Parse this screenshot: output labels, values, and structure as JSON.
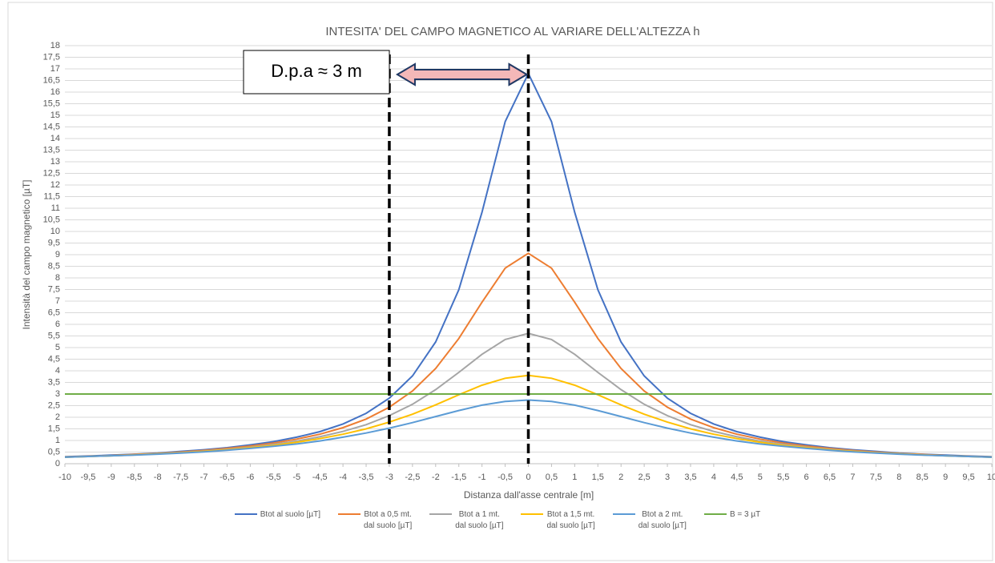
{
  "chart_data": {
    "type": "line",
    "title": "INTESITA' DEL CAMPO MAGNETICO AL VARIARE DELL'ALTEZZA h",
    "xlabel": "Distanza dall'asse centrale [m]",
    "ylabel": "Intensità del campo magnetico [µT]",
    "annotation": "D.p.a ≈ 3 m",
    "vlines": [
      -3,
      0
    ],
    "x": [
      -10,
      -9.5,
      -9,
      -8.5,
      -8,
      -7.5,
      -7,
      -6.5,
      -6,
      -5.5,
      -5,
      -4.5,
      -4,
      -3.5,
      -3,
      -2.5,
      -2,
      -1.5,
      -1,
      -0.5,
      0,
      0.5,
      1,
      1.5,
      2,
      2.5,
      3,
      3.5,
      4,
      4.5,
      5,
      5.5,
      6,
      6.5,
      7,
      7.5,
      8,
      8.5,
      9,
      9.5,
      10
    ],
    "series": [
      {
        "name": "Btot al suolo [µT]",
        "color": "#4472c4",
        "values": [
          0.3,
          0.33,
          0.37,
          0.41,
          0.46,
          0.53,
          0.6,
          0.69,
          0.81,
          0.95,
          1.14,
          1.38,
          1.71,
          2.17,
          2.82,
          3.78,
          5.24,
          7.49,
          10.82,
          14.73,
          16.8,
          14.73,
          10.82,
          7.49,
          5.24,
          3.78,
          2.82,
          2.17,
          1.71,
          1.38,
          1.14,
          0.95,
          0.81,
          0.69,
          0.6,
          0.53,
          0.46,
          0.41,
          0.37,
          0.33,
          0.3
        ]
      },
      {
        "name": "Btot a 0,5 mt.\ndal suolo [µT]",
        "color": "#ed7d31",
        "values": [
          0.29,
          0.32,
          0.35,
          0.4,
          0.44,
          0.5,
          0.57,
          0.66,
          0.76,
          0.89,
          1.06,
          1.27,
          1.55,
          1.92,
          2.43,
          3.13,
          4.1,
          5.39,
          6.95,
          8.42,
          9.06,
          8.42,
          6.95,
          5.39,
          4.1,
          3.13,
          2.43,
          1.92,
          1.55,
          1.27,
          1.06,
          0.89,
          0.76,
          0.66,
          0.57,
          0.5,
          0.44,
          0.4,
          0.35,
          0.32,
          0.29
        ]
      },
      {
        "name": "Btot a 1 mt.\ndal suolo [µT]",
        "color": "#a5a5a5",
        "values": [
          0.28,
          0.31,
          0.34,
          0.38,
          0.43,
          0.48,
          0.54,
          0.62,
          0.71,
          0.83,
          0.97,
          1.16,
          1.39,
          1.68,
          2.07,
          2.56,
          3.19,
          3.93,
          4.71,
          5.35,
          5.61,
          5.35,
          4.71,
          3.93,
          3.19,
          2.56,
          2.07,
          1.68,
          1.39,
          1.16,
          0.97,
          0.83,
          0.71,
          0.62,
          0.54,
          0.48,
          0.43,
          0.38,
          0.34,
          0.31,
          0.28
        ]
      },
      {
        "name": "Btot a 1,5 mt.\ndal suolo [µT]",
        "color": "#ffc000",
        "values": [
          0.28,
          0.31,
          0.34,
          0.38,
          0.42,
          0.47,
          0.53,
          0.6,
          0.69,
          0.79,
          0.92,
          1.08,
          1.27,
          1.5,
          1.79,
          2.13,
          2.53,
          2.97,
          3.38,
          3.68,
          3.8,
          3.68,
          3.38,
          2.97,
          2.53,
          2.13,
          1.79,
          1.5,
          1.27,
          1.08,
          0.92,
          0.79,
          0.69,
          0.6,
          0.53,
          0.47,
          0.42,
          0.38,
          0.34,
          0.31,
          0.28
        ]
      },
      {
        "name": "Btot a 2 mt.\ndal suolo [µT]",
        "color": "#5b9bd5",
        "values": [
          0.28,
          0.31,
          0.34,
          0.37,
          0.41,
          0.46,
          0.51,
          0.58,
          0.66,
          0.75,
          0.85,
          0.98,
          1.14,
          1.32,
          1.53,
          1.77,
          2.03,
          2.29,
          2.52,
          2.68,
          2.74,
          2.68,
          2.52,
          2.29,
          2.03,
          1.77,
          1.53,
          1.32,
          1.14,
          0.98,
          0.85,
          0.75,
          0.66,
          0.58,
          0.51,
          0.46,
          0.41,
          0.37,
          0.34,
          0.31,
          0.28
        ]
      },
      {
        "name": "B = 3 µT",
        "color": "#70ad47",
        "values": [
          3,
          3,
          3,
          3,
          3,
          3,
          3,
          3,
          3,
          3,
          3,
          3,
          3,
          3,
          3,
          3,
          3,
          3,
          3,
          3,
          3,
          3,
          3,
          3,
          3,
          3,
          3,
          3,
          3,
          3,
          3,
          3,
          3,
          3,
          3,
          3,
          3,
          3,
          3,
          3,
          3
        ]
      }
    ],
    "xlim": [
      -10,
      10
    ],
    "xticks": [
      -10,
      {
        "value": -9.5,
        "label": "-9,5"
      },
      -9,
      {
        "value": -8.5,
        "label": "-8,5"
      },
      -8,
      {
        "value": -7.5,
        "label": "-7,5"
      },
      -7,
      {
        "value": -6.5,
        "label": "-6,5"
      },
      -6,
      {
        "value": -5.5,
        "label": "-5,5"
      },
      -5,
      {
        "value": -4.5,
        "label": "-4,5"
      },
      -4,
      {
        "value": -3.5,
        "label": "-3,5"
      },
      -3,
      {
        "value": -2.5,
        "label": "-2,5"
      },
      -2,
      {
        "value": -1.5,
        "label": "-1,5"
      },
      -1,
      {
        "value": -0.5,
        "label": "-0,5"
      },
      0,
      {
        "value": 0.5,
        "label": "0,5"
      },
      1,
      {
        "value": 1.5,
        "label": "1,5"
      },
      2,
      {
        "value": 2.5,
        "label": "2,5"
      },
      3,
      {
        "value": 3.5,
        "label": "3,5"
      },
      4,
      {
        "value": 4.5,
        "label": "4,5"
      },
      5,
      {
        "value": 5.5,
        "label": "5,5"
      },
      6,
      {
        "value": 6.5,
        "label": "6,5"
      },
      7,
      {
        "value": 7.5,
        "label": "7,5"
      },
      8,
      {
        "value": 8.5,
        "label": "8,5"
      },
      9,
      {
        "value": 9.5,
        "label": "9,5"
      },
      10
    ],
    "ylim": [
      0,
      18
    ],
    "yticks": [
      0,
      {
        "value": 0.5,
        "label": "0,5"
      },
      1,
      {
        "value": 1.5,
        "label": "1,5"
      },
      2,
      {
        "value": 2.5,
        "label": "2,5"
      },
      3,
      {
        "value": 3.5,
        "label": "3,5"
      },
      4,
      {
        "value": 4.5,
        "label": "4,5"
      },
      5,
      {
        "value": 5.5,
        "label": "5,5"
      },
      6,
      {
        "value": 6.5,
        "label": "6,5"
      },
      7,
      {
        "value": 7.5,
        "label": "7,5"
      },
      8,
      {
        "value": 8.5,
        "label": "8,5"
      },
      9,
      {
        "value": 9.5,
        "label": "9,5"
      },
      10,
      {
        "value": 10.5,
        "label": "10,5"
      },
      11,
      {
        "value": 11.5,
        "label": "11,5"
      },
      12,
      {
        "value": 12.5,
        "label": "12,5"
      },
      13,
      {
        "value": 13.5,
        "label": "13,5"
      },
      14,
      {
        "value": 14.5,
        "label": "14,5"
      },
      15,
      {
        "value": 15.5,
        "label": "15,5"
      },
      16,
      {
        "value": 16.5,
        "label": "16,5"
      },
      17,
      {
        "value": 17.5,
        "label": "17,5"
      },
      18
    ],
    "grid": true,
    "legend": "bottom"
  }
}
